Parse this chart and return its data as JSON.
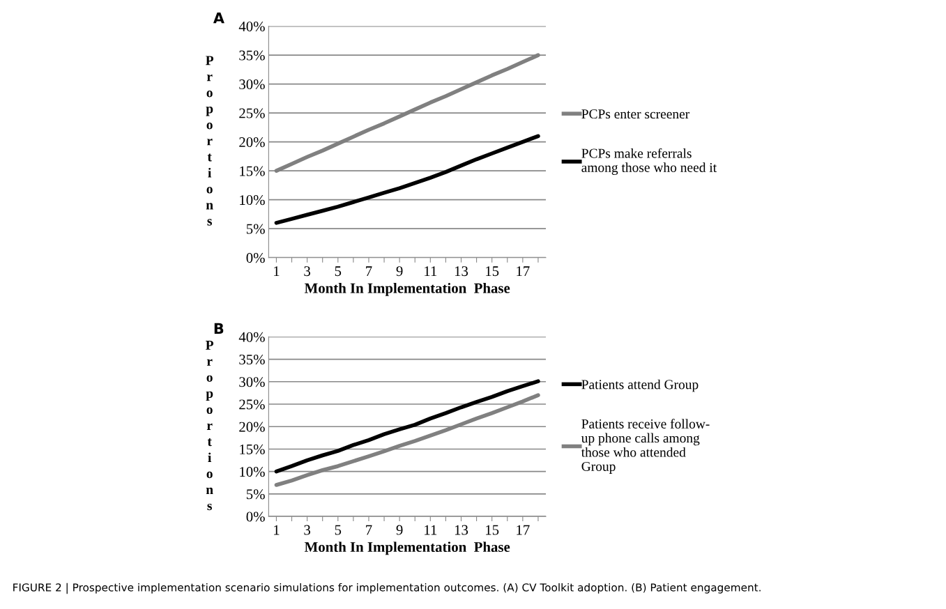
{
  "chart_data": [
    {
      "type": "line",
      "xlabel": "Month In Implementation  Phase",
      "ylabel": "Proportions",
      "categories": [
        "1",
        null,
        "3",
        null,
        "5",
        null,
        "7",
        null,
        "9",
        null,
        "11",
        null,
        "13",
        null,
        "15",
        null,
        "17",
        null
      ],
      "series": [
        {
          "name": "PCPs enter screener",
          "color": "#808080",
          "values": [
            15,
            16.2,
            17.4,
            18.5,
            19.7,
            20.9,
            22.1,
            23.2,
            24.4,
            25.6,
            26.8,
            27.9,
            29.1,
            30.3,
            31.5,
            32.6,
            33.8,
            35
          ]
        },
        {
          "name": "PCPs make referrals\namong those who need it",
          "color": "#000000",
          "values": [
            6,
            6.7,
            7.4,
            8.1,
            8.8,
            9.6,
            10.4,
            11.2,
            12.0,
            12.9,
            13.8,
            14.8,
            15.9,
            17.0,
            18.0,
            19.0,
            20.0,
            21.0
          ]
        }
      ],
      "ylim": [
        0,
        40
      ],
      "yticks": [
        {
          "value": 0,
          "label": "0%"
        },
        {
          "value": 5,
          "label": "5%"
        },
        {
          "value": 10,
          "label": "10%"
        },
        {
          "value": 15,
          "label": "15%"
        },
        {
          "value": 20,
          "label": "20%"
        },
        {
          "value": 25,
          "label": "25%"
        },
        {
          "value": 30,
          "label": "30%"
        },
        {
          "value": 35,
          "label": "35%"
        },
        {
          "value": 40,
          "label": "40%"
        }
      ],
      "grid": "y",
      "legend": "right",
      "marker": "none",
      "line_style": "solid",
      "annotations": [
        "A"
      ]
    },
    {
      "type": "line",
      "xlabel": "Month In Implementation  Phase",
      "ylabel": "Proportions",
      "categories": [
        "1",
        null,
        "3",
        null,
        "5",
        null,
        "7",
        null,
        "9",
        null,
        "11",
        null,
        "13",
        null,
        "15",
        null,
        "17",
        null
      ],
      "series": [
        {
          "name": "Patients attend Group",
          "color": "#000000",
          "values": [
            10,
            11.2,
            12.5,
            13.6,
            14.6,
            15.9,
            17.0,
            18.3,
            19.4,
            20.4,
            21.8,
            23.0,
            24.3,
            25.5,
            26.6,
            27.9,
            29.0,
            30.1
          ]
        },
        {
          "name": "Patients receive follow-\nup phone calls among\nthose who attended\nGroup",
          "color": "#808080",
          "values": [
            7,
            8,
            9.2,
            10.3,
            11.2,
            12.3,
            13.4,
            14.5,
            15.7,
            16.8,
            18.0,
            19.2,
            20.5,
            21.8,
            23.0,
            24.3,
            25.6,
            27.0
          ]
        }
      ],
      "ylim": [
        0,
        40
      ],
      "yticks": [
        {
          "value": 0,
          "label": "0%"
        },
        {
          "value": 5,
          "label": "5%"
        },
        {
          "value": 10,
          "label": "10%"
        },
        {
          "value": 15,
          "label": "15%"
        },
        {
          "value": 20,
          "label": "20%"
        },
        {
          "value": 25,
          "label": "25%"
        },
        {
          "value": 30,
          "label": "30%"
        },
        {
          "value": 35,
          "label": "35%"
        },
        {
          "value": 40,
          "label": "40%"
        }
      ],
      "grid": "y",
      "legend": "right",
      "marker": "none",
      "line_style": "solid",
      "annotations": [
        "B",
        "FIGURE 2 | Prospective implementation scenario simulations for implementation outcomes. (A) CV Toolkit adoption. (B) Patient engagement."
      ]
    }
  ]
}
